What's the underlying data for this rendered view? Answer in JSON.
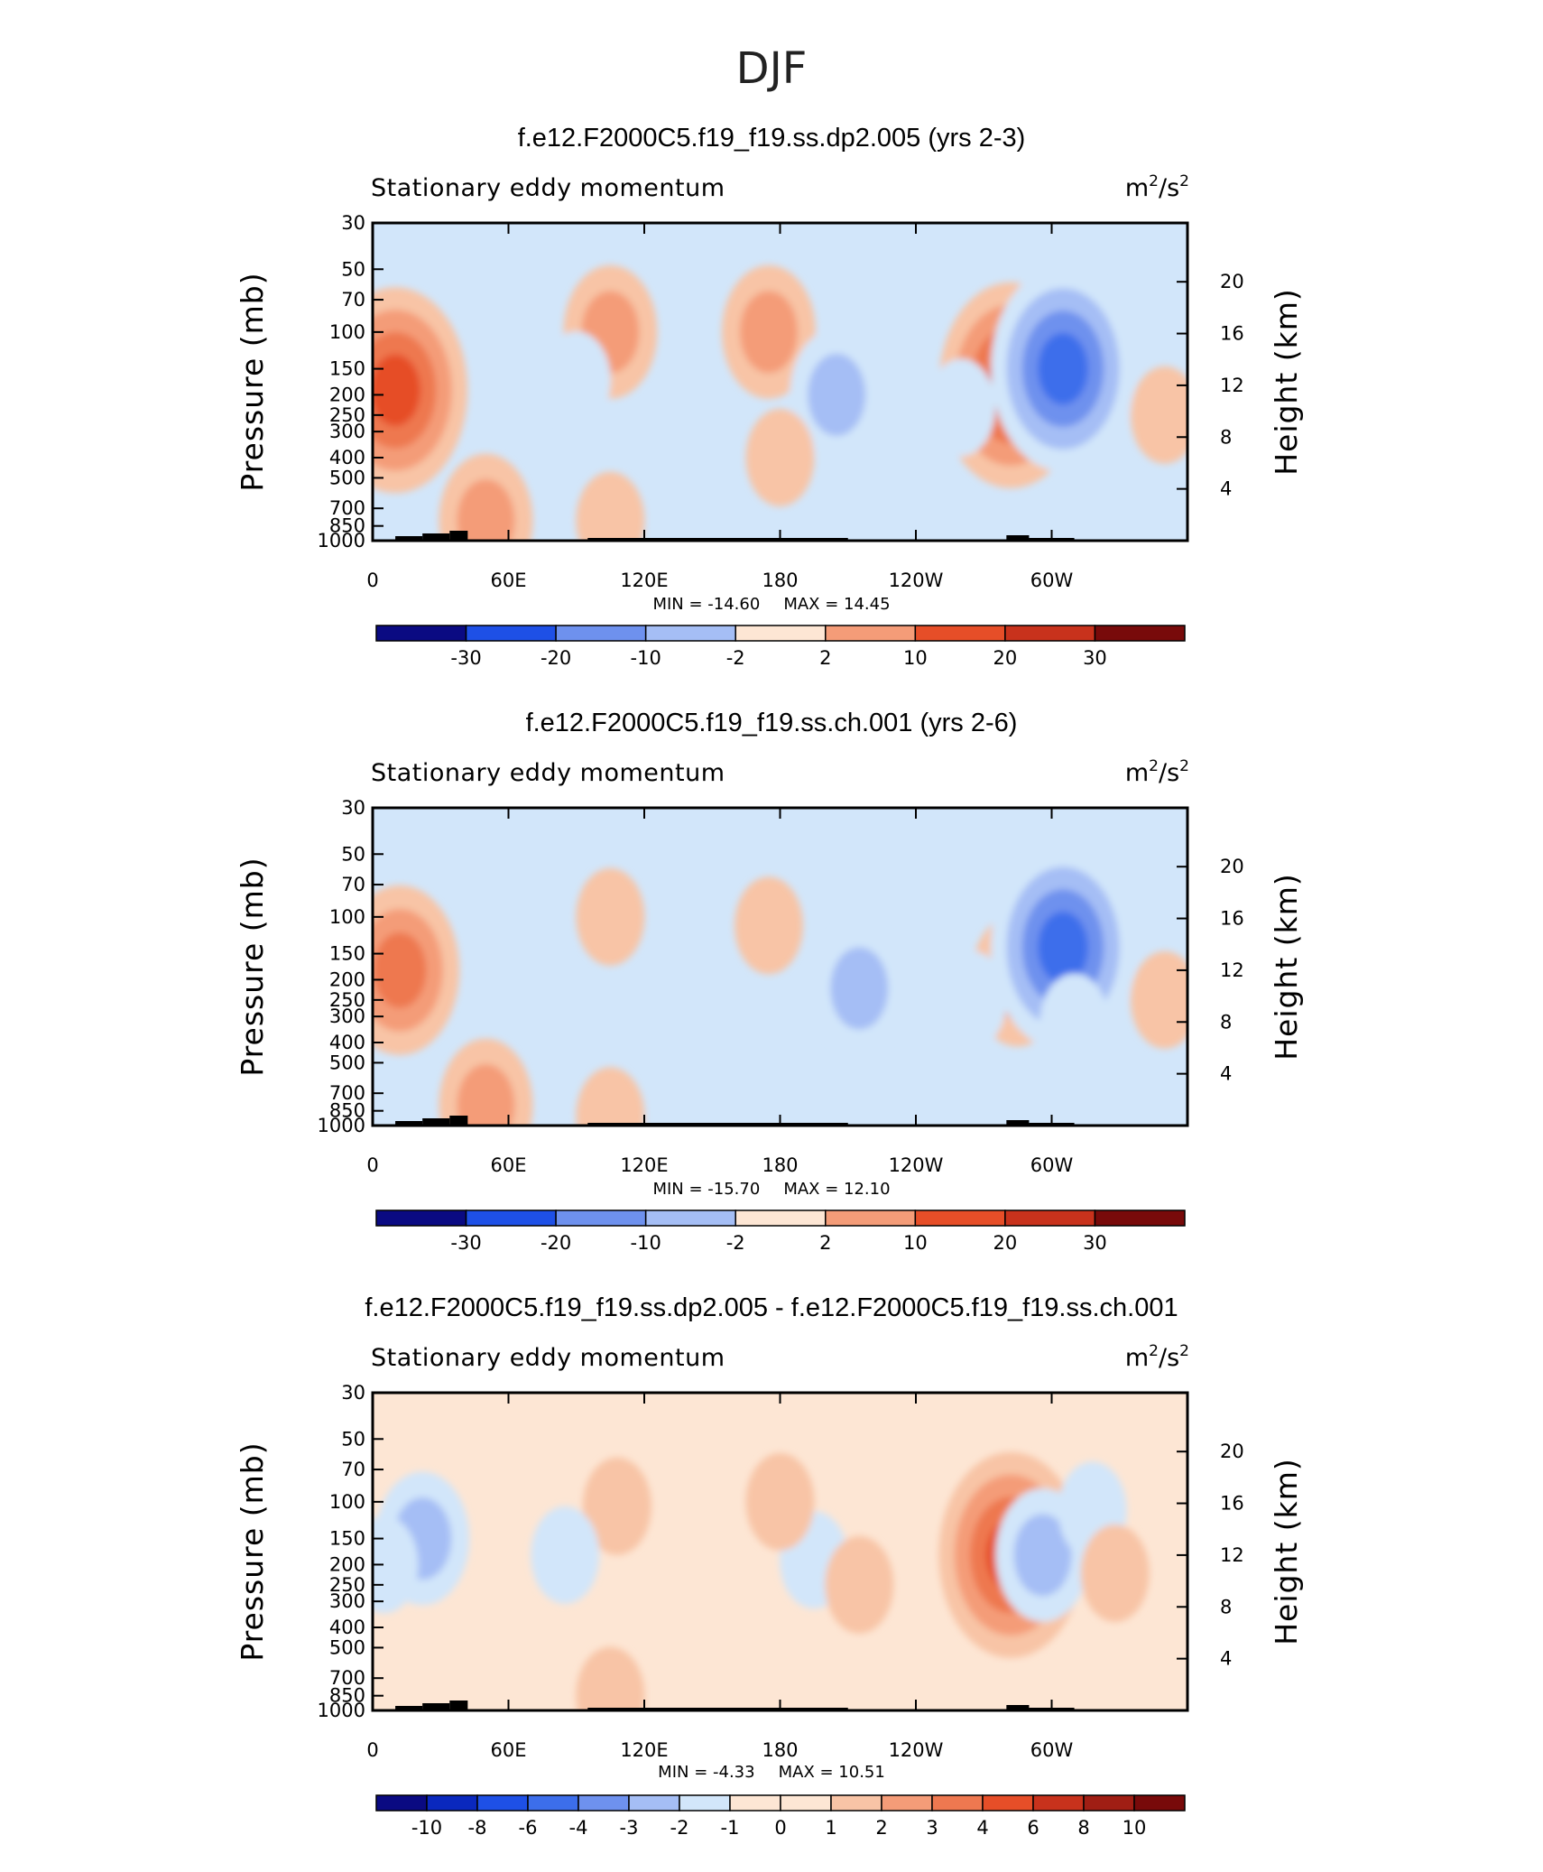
{
  "figure_title": "DJF",
  "colorbar_colors": [
    "#0a0a82",
    "#0a28be",
    "#1e50e6",
    "#3c6eeb",
    "#6e91ee",
    "#a5bef5",
    "#d2e6fa",
    "#fde6d4",
    "#f8c4a6",
    "#f49c78",
    "#ee7850",
    "#e64e28",
    "#c8321c",
    "#a01e14",
    "#780a0a"
  ],
  "chart_data": [
    {
      "type": "heatmap",
      "title": "f.e12.F2000C5.f19_f19.ss.dp2.005 (yrs 2-3)",
      "left_string": "Stationary eddy momentum",
      "units_base": "m",
      "units_sup1": "2",
      "units_mid": "/s",
      "units_sup2": "2",
      "ylabel": "Pressure  (mb)",
      "y2label": "Height  (km)",
      "pressure_ticks": [
        "30",
        "50",
        "70",
        "100",
        "150",
        "200",
        "250",
        "300",
        "400",
        "500",
        "700",
        "850",
        "1000"
      ],
      "pressure_values": [
        30,
        50,
        70,
        100,
        150,
        200,
        250,
        300,
        400,
        500,
        700,
        850,
        1000
      ],
      "height_ticks": [
        "20",
        "16",
        "12",
        "8",
        "4"
      ],
      "height_values": [
        20,
        16,
        12,
        8,
        4
      ],
      "lon_ticks": [
        "0",
        "60E",
        "120E",
        "180",
        "120W",
        "60W"
      ],
      "lon_values": [
        0,
        60,
        120,
        180,
        240,
        300
      ],
      "xlim": [
        0,
        360
      ],
      "ylim": [
        1000,
        30
      ],
      "min_label": "MIN = ",
      "min_value": "-14.60",
      "max_label": "MAX = ",
      "max_value": "14.45",
      "colorbar_labels": [
        "-30",
        "-20",
        "-10",
        "-2",
        "2",
        "10",
        "20",
        "30"
      ],
      "features": [
        {
          "lon": 10,
          "p": 190,
          "value": 14
        },
        {
          "lon": 350,
          "p": 250,
          "value": 5
        },
        {
          "lon": 105,
          "p": 100,
          "value": 6
        },
        {
          "lon": 175,
          "p": 100,
          "value": 6
        },
        {
          "lon": 282,
          "p": 180,
          "value": 14
        },
        {
          "lon": 305,
          "p": 150,
          "value": -14.6
        },
        {
          "lon": 205,
          "p": 200,
          "value": -6
        },
        {
          "lon": 90,
          "p": 170,
          "value": -4
        },
        {
          "lon": 260,
          "p": 230,
          "value": -4
        },
        {
          "lon": 50,
          "p": 800,
          "value": 6
        },
        {
          "lon": 180,
          "p": 400,
          "value": 4
        },
        {
          "lon": 105,
          "p": 800,
          "value": 4
        }
      ]
    },
    {
      "type": "heatmap",
      "title": "f.e12.F2000C5.f19_f19.ss.ch.001 (yrs 2-6)",
      "left_string": "Stationary eddy momentum",
      "units_base": "m",
      "units_sup1": "2",
      "units_mid": "/s",
      "units_sup2": "2",
      "ylabel": "Pressure  (mb)",
      "y2label": "Height  (km)",
      "pressure_ticks": [
        "30",
        "50",
        "70",
        "100",
        "150",
        "200",
        "250",
        "300",
        "400",
        "500",
        "700",
        "850",
        "1000"
      ],
      "pressure_values": [
        30,
        50,
        70,
        100,
        150,
        200,
        250,
        300,
        400,
        500,
        700,
        850,
        1000
      ],
      "height_ticks": [
        "20",
        "16",
        "12",
        "8",
        "4"
      ],
      "height_values": [
        20,
        16,
        12,
        8,
        4
      ],
      "lon_ticks": [
        "0",
        "60E",
        "120E",
        "180",
        "120W",
        "60W"
      ],
      "lon_values": [
        0,
        60,
        120,
        180,
        240,
        300
      ],
      "xlim": [
        0,
        360
      ],
      "ylim": [
        1000,
        30
      ],
      "min_label": "MIN = ",
      "min_value": "-15.70",
      "max_label": "MAX = ",
      "max_value": "12.10",
      "colorbar_labels": [
        "-30",
        "-20",
        "-10",
        "-2",
        "2",
        "10",
        "20",
        "30"
      ],
      "features": [
        {
          "lon": 12,
          "p": 180,
          "value": 12
        },
        {
          "lon": 350,
          "p": 250,
          "value": 4
        },
        {
          "lon": 105,
          "p": 100,
          "value": 3
        },
        {
          "lon": 175,
          "p": 110,
          "value": 3
        },
        {
          "lon": 285,
          "p": 200,
          "value": 8
        },
        {
          "lon": 305,
          "p": 140,
          "value": -15.7
        },
        {
          "lon": 215,
          "p": 220,
          "value": -9
        },
        {
          "lon": 265,
          "p": 250,
          "value": -4
        },
        {
          "lon": 50,
          "p": 800,
          "value": 6
        },
        {
          "lon": 105,
          "p": 900,
          "value": 3
        },
        {
          "lon": 310,
          "p": 320,
          "value": -3
        }
      ]
    },
    {
      "type": "heatmap",
      "title": "f.e12.F2000C5.f19_f19.ss.dp2.005 - f.e12.F2000C5.f19_f19.ss.ch.001",
      "left_string": "Stationary eddy momentum",
      "units_base": "m",
      "units_sup1": "2",
      "units_mid": "/s",
      "units_sup2": "2",
      "ylabel": "Pressure  (mb)",
      "y2label": "Height  (km)",
      "pressure_ticks": [
        "30",
        "50",
        "70",
        "100",
        "150",
        "200",
        "250",
        "300",
        "400",
        "500",
        "700",
        "850",
        "1000"
      ],
      "pressure_values": [
        30,
        50,
        70,
        100,
        150,
        200,
        250,
        300,
        400,
        500,
        700,
        850,
        1000
      ],
      "height_ticks": [
        "20",
        "16",
        "12",
        "8",
        "4"
      ],
      "height_values": [
        20,
        16,
        12,
        8,
        4
      ],
      "lon_ticks": [
        "0",
        "60E",
        "120E",
        "180",
        "120W",
        "60W"
      ],
      "lon_values": [
        0,
        60,
        120,
        180,
        240,
        300
      ],
      "xlim": [
        0,
        360
      ],
      "ylim": [
        1000,
        30
      ],
      "min_label": "MIN = ",
      "min_value": "-4.33",
      "max_label": "MAX = ",
      "max_value": "10.51",
      "colorbar_labels": [
        "-10",
        "-8",
        "-6",
        "-4",
        "-3",
        "-2",
        "-1",
        "0",
        "1",
        "2",
        "3",
        "4",
        "6",
        "8",
        "10"
      ],
      "features": [
        {
          "lon": 22,
          "p": 150,
          "value": -4
        },
        {
          "lon": 5,
          "p": 200,
          "value": -2
        },
        {
          "lon": 108,
          "p": 105,
          "value": 2
        },
        {
          "lon": 85,
          "p": 180,
          "value": -1.5
        },
        {
          "lon": 195,
          "p": 190,
          "value": -2
        },
        {
          "lon": 215,
          "p": 250,
          "value": 3
        },
        {
          "lon": 282,
          "p": 180,
          "value": 10.51
        },
        {
          "lon": 296,
          "p": 180,
          "value": -4.33
        },
        {
          "lon": 318,
          "p": 110,
          "value": -3
        },
        {
          "lon": 328,
          "p": 220,
          "value": 3
        },
        {
          "lon": 105,
          "p": 850,
          "value": 2
        },
        {
          "lon": 180,
          "p": 100,
          "value": 1.5
        }
      ]
    }
  ]
}
